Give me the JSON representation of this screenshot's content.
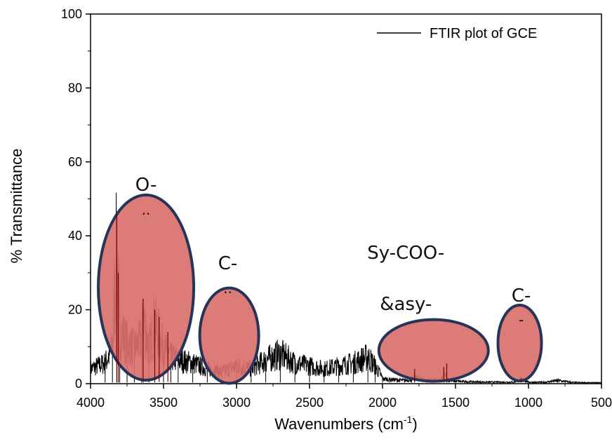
{
  "chart_data": {
    "type": "line",
    "xlabel": "Wavenumbers (cm",
    "xlabel_sup": "-1",
    "xlabel_close": ")",
    "ylabel": "% Transmittance",
    "xlim": [
      4000,
      500
    ],
    "ylim": [
      0,
      100
    ],
    "x_ticks": [
      "4000",
      "3500",
      "3000",
      "2500",
      "2000",
      "1500",
      "1000",
      "500"
    ],
    "y_ticks": [
      "0",
      "20",
      "40",
      "60",
      "80",
      "100"
    ],
    "legend": {
      "label": "FTIR plot of GCE",
      "position": "top-right"
    },
    "series": [
      {
        "name": "FTIR plot of GCE",
        "color": "#000000",
        "x": [
          4000,
          3900,
          3850,
          3820,
          3810,
          3800,
          3750,
          3700,
          3650,
          3640,
          3600,
          3560,
          3500,
          3450,
          3400,
          3300,
          3200,
          3100,
          3000,
          2900,
          2800,
          2700,
          2600,
          2500,
          2400,
          2300,
          2200,
          2100,
          2050,
          2000,
          1950,
          1900,
          1850,
          1800,
          1780,
          1700,
          1600,
          1580,
          1560,
          1550,
          1500,
          1400,
          1300,
          1200,
          1100,
          1050,
          1000,
          900,
          800,
          700,
          600,
          500
        ],
        "y": [
          5,
          7,
          12,
          46,
          30,
          18,
          14,
          12,
          15,
          23,
          12,
          20,
          12,
          9,
          8,
          7,
          5,
          4,
          6,
          5,
          8,
          10,
          7,
          6,
          5,
          6,
          7,
          9,
          6,
          2,
          1.5,
          1.2,
          1,
          1.5,
          4,
          1.2,
          1,
          4.5,
          5.5,
          1,
          0.8,
          0.6,
          0.5,
          0.5,
          0.5,
          1.5,
          0.5,
          0.4,
          1,
          0.4,
          0.3,
          0.3
        ]
      }
    ],
    "annotations": [
      {
        "label": "O-",
        "sub": "..",
        "center_x": 3620,
        "center_y": 26,
        "fill": "#d9706d"
      },
      {
        "label": "C-",
        "sub": "..",
        "center_x": 3050,
        "center_y": 13,
        "fill": "#d9706d"
      },
      {
        "label": "Sy-COO-",
        "sub": "&asy-",
        "center_x": 1650,
        "center_y": 9,
        "fill": "#d9706d"
      },
      {
        "label": "C-",
        "sub": "-",
        "center_x": 1060,
        "center_y": 11,
        "fill": "#d9706d"
      }
    ],
    "grid": false
  }
}
